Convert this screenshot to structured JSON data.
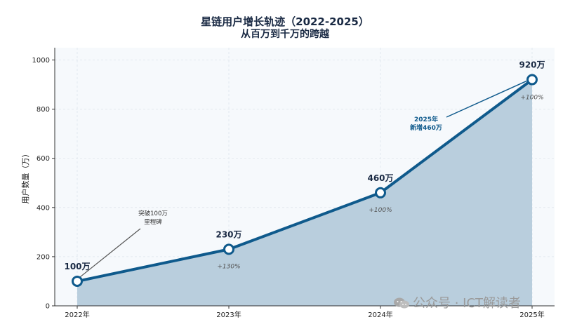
{
  "chart_data": {
    "type": "area",
    "title": "星链用户增长轨迹（2022-2025）",
    "subtitle": "从百万到千万的跨越",
    "xlabel": "",
    "ylabel": "用户数量（万）",
    "categories": [
      "2022年",
      "2023年",
      "2024年",
      "2025年"
    ],
    "values": [
      100,
      230,
      460,
      920
    ],
    "value_labels": [
      "100万",
      "230万",
      "460万",
      "920万"
    ],
    "growth_labels": [
      "",
      "+130%",
      "+100%",
      "+100%"
    ],
    "ylim": [
      0,
      1050
    ],
    "yticks": [
      0,
      200,
      400,
      600,
      800,
      1000
    ],
    "grid": true,
    "annotations": [
      {
        "point": "2022年",
        "lines": [
          "突破100万",
          "里程碑"
        ]
      },
      {
        "point": "2025年",
        "lines": [
          "2025年",
          "新增460万"
        ]
      }
    ],
    "colors": {
      "line": "#0f5a8c",
      "fill": "#b9cedd",
      "plot_bg": "#f6f9fc"
    }
  },
  "watermark": "公众号 · ICT解读者"
}
